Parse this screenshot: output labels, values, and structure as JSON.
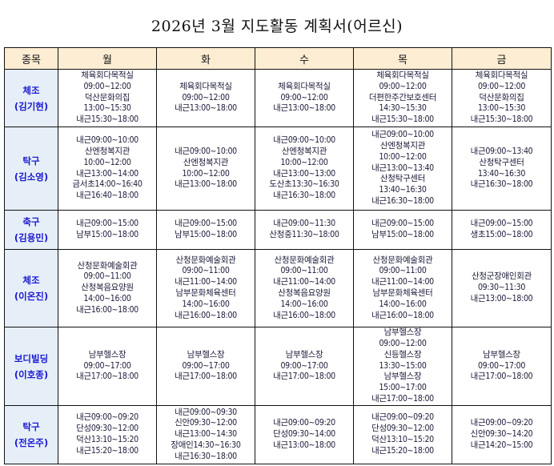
{
  "title": "2026년 3월 지도활동 계획서(어르신)",
  "headers": [
    "종목",
    "월",
    "화",
    "수",
    "목",
    "금"
  ],
  "rows": [
    {
      "sport": "체조",
      "person": "(김기현)",
      "cells": [
        [
          "체육회다목적실",
          "09:00~12:00",
          "덕산문화의집",
          "13:00~15:30",
          "내근15:30~18:00"
        ],
        [
          "체육회다목적실",
          "09:00~12:00",
          "내근13:00~18:00"
        ],
        [
          "체육회다목적실",
          "09:00~12:00",
          "내근13:00~18:00"
        ],
        [
          "체육회다목적실",
          "09:00~12:00",
          "더편한주간보호센터",
          "14:30~15:30",
          "내근15:30~18:00"
        ],
        [
          "체육회다목적실",
          "09:00~12:00",
          "덕산문화의집",
          "13:00~15:30",
          "내근15:30~18:00"
        ]
      ]
    },
    {
      "sport": "탁구",
      "person": "(김소영)",
      "cells": [
        [
          "내근09:00~10:00",
          "산엔청복지관",
          "10:00~12:00",
          "내근13:00~14:00",
          "금서초14:00~16:40",
          "내근16:40~18:00"
        ],
        [
          "내근09:00~10:00",
          "산엔청복지관",
          "10:00~12:00",
          "내근13:00~18:00"
        ],
        [
          "내근09:00~10:00",
          "산엔청복지관",
          "10:00~12:00",
          "내근13:00~13:00",
          "도산초13:30~16:30",
          "내근16:30~18:00"
        ],
        [
          "내근09:00~10:00",
          "산엔청복지관",
          "10:00~12:00",
          "내근13:00~13:40",
          "산청탁구센터",
          "13:40~16:30",
          "내근16:30~18:00"
        ],
        [
          "내근09:00~13:40",
          "산청탁구센터",
          "13:40~16:30",
          "내근16:30~18:00"
        ]
      ]
    },
    {
      "sport": "축구",
      "person": "(김용민)",
      "cells": [
        [
          "내근09:00~15:00",
          "남부15:00~18:00"
        ],
        [
          "내근09:00~15:00",
          "남부15:00~18:00"
        ],
        [
          "내근09:00~11:30",
          "산청중11:30~18:00"
        ],
        [
          "내근09:00~15:00",
          "남부15:00~18:00"
        ],
        [
          "내근09:00~15:00",
          "생초15:00~18:00"
        ]
      ]
    },
    {
      "sport": "체조",
      "person": "(이온진)",
      "cells": [
        [
          "산청문화예술회관",
          "09:00~11:00",
          "산청복음요양원",
          "14:00~16:00",
          "내근16:00~18:00"
        ],
        [
          "산청문화예술회관",
          "09:00~11:00",
          "내근11:00~14:00",
          "남부문화체육센터",
          "14:00~16:00",
          "내근16:00~18:00"
        ],
        [
          "산청문화예술회관",
          "09:00~11:00",
          "내근11:00~14:00",
          "산청복음요양원",
          "14:00~16:00",
          "내근16:00~18:00"
        ],
        [
          "산청문화예술회관",
          "09:00~11:00",
          "내근11:00~14:00",
          "남부문화체육센터",
          "14:00~16:00",
          "내근16:00~18:00"
        ],
        [
          "산청군장애인회관",
          "09:30~11:30",
          "내근13:00~18:00"
        ]
      ]
    },
    {
      "sport": "보디빌딩",
      "person": "(이호종)",
      "cells": [
        [
          "남부헬스장",
          "09:00~17:00",
          "내근17:00~18:00"
        ],
        [
          "남부헬스장",
          "09:00~17:00",
          "내근17:00~18:00"
        ],
        [
          "남부헬스장",
          "09:00~17:00",
          "내근17:00~18:00"
        ],
        [
          "남부헬스장",
          "09:00~12:00",
          "신등헬스장",
          "13:30~15:00",
          "남부헬스장",
          "15:00~17:00",
          "내근17:00~18:00"
        ],
        [
          "남부헬스장",
          "09:00~17:00",
          "내근17:00~18:00"
        ]
      ]
    },
    {
      "sport": "탁구",
      "person": "(전온주)",
      "cells": [
        [
          "내근09:00~09:20",
          "단성09:30~12:00",
          "덕산13:10~15:20",
          "내근15:20~18:00"
        ],
        [
          "내근09:00~09:30",
          "신안09:30~12:00",
          "내근13:00~14:30",
          "장애인14:30~16:30",
          "내근16:30~18:00"
        ],
        [
          "내근09:00~09:20",
          "단성09:30~14:00",
          "내근13:00~18:00"
        ],
        [
          "내근09:00~09:20",
          "단성09:30~12:00",
          "덕산13:10~15:20",
          "내근15:20~18:00"
        ],
        [
          "내근09:00~09:20",
          "신안09:30~14:20",
          "내근14:20~15:00"
        ]
      ]
    }
  ]
}
